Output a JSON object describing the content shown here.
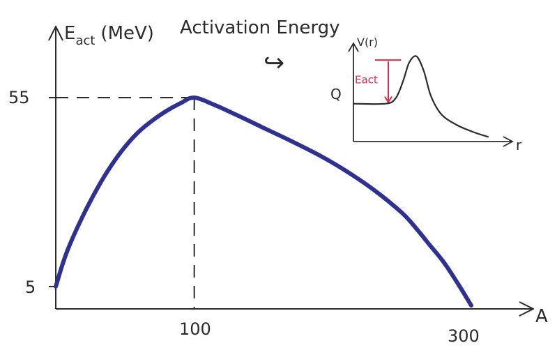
{
  "chart_data": [
    {
      "type": "line",
      "title": "Activation Energy",
      "ylabel": {
        "symbol": "E",
        "subscript": "act",
        "unit": "(MeV)"
      },
      "xlabel": "A",
      "xlim": [
        0,
        320
      ],
      "ylim": [
        0,
        64
      ],
      "x_ticks": [
        {
          "value": 100,
          "label": "100"
        },
        {
          "value": 300,
          "label": "300"
        }
      ],
      "y_ticks": [
        {
          "value": 5,
          "label": "5"
        },
        {
          "value": 55,
          "label": "55"
        }
      ],
      "guide_lines": {
        "peak_x": 100,
        "peak_y": 55
      },
      "series": [
        {
          "color": "#2e3190",
          "x": [
            0,
            5,
            10,
            20,
            30,
            40,
            50,
            60,
            70,
            80,
            90,
            100,
            115,
            130,
            150,
            170,
            190,
            210,
            230,
            250,
            260,
            270,
            280,
            290,
            300
          ],
          "y": [
            5,
            11,
            16,
            24,
            31,
            37,
            42,
            46,
            49,
            51.5,
            53.5,
            55,
            53,
            50.5,
            47,
            43.5,
            39.8,
            35.5,
            30.5,
            24.5,
            20.5,
            16,
            11.5,
            6,
            0
          ]
        }
      ],
      "arrow_glyph": "↪"
    },
    {
      "type": "line",
      "role": "inset",
      "ylabel": "V(r)",
      "xlabel": "r",
      "xlim": [
        0,
        10
      ],
      "ylim": [
        0,
        10
      ],
      "y_ticks": [
        {
          "value": 4,
          "label": "Q"
        }
      ],
      "annotation": {
        "text": "Eact",
        "color": "#e0284a",
        "from_y": 4,
        "to_y": 8.6
      },
      "series": [
        {
          "color": "#2b2b2b",
          "x": [
            0,
            2.2,
            2.9,
            3.4,
            3.8,
            4.3,
            4.8,
            5.3,
            6.0,
            7.0,
            8.2,
            9.2
          ],
          "y": [
            4,
            4,
            4.6,
            6.4,
            8.3,
            9,
            7.5,
            4.8,
            2.9,
            1.8,
            1.0,
            0.5
          ]
        }
      ]
    }
  ]
}
